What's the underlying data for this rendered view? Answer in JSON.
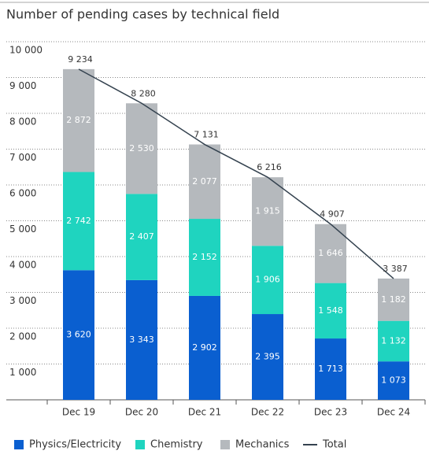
{
  "chart_data": {
    "type": "stacked-bar-line",
    "title": "Number of pending cases by technical field",
    "categories": [
      "Dec 19",
      "Dec 20",
      "Dec 21",
      "Dec 22",
      "Dec 23",
      "Dec 24"
    ],
    "series": [
      {
        "name": "Physics/Electricity",
        "color": "#0a5fd0",
        "kind": "bar",
        "values": [
          3620,
          3343,
          2902,
          2395,
          1713,
          1073
        ],
        "value_labels": [
          "3 620",
          "3 343",
          "2 902",
          "2 395",
          "1 713",
          "1 073"
        ]
      },
      {
        "name": "Chemistry",
        "color": "#1fd4bf",
        "kind": "bar",
        "values": [
          2742,
          2407,
          2152,
          1906,
          1548,
          1132
        ],
        "value_labels": [
          "2 742",
          "2 407",
          "2 152",
          "1 906",
          "1 548",
          "1 132"
        ]
      },
      {
        "name": "Mechanics",
        "color": "#b5b9bd",
        "kind": "bar",
        "values": [
          2872,
          2530,
          2077,
          1915,
          1646,
          1182
        ],
        "value_labels": [
          "2 872",
          "2 530",
          "2 077",
          "1 915",
          "1 646",
          "1 182"
        ]
      },
      {
        "name": "Total",
        "color": "#34424f",
        "kind": "line",
        "values": [
          9234,
          8280,
          7131,
          6216,
          4907,
          3387
        ],
        "value_labels": [
          "9 234",
          "8 280",
          "7 131",
          "6 216",
          "4 907",
          "3 387"
        ]
      }
    ],
    "ylim": [
      0,
      10000
    ],
    "yticks": [
      {
        "value": 1000,
        "label": "1 000"
      },
      {
        "value": 2000,
        "label": "2 000"
      },
      {
        "value": 3000,
        "label": "3 000"
      },
      {
        "value": 4000,
        "label": "4 000"
      },
      {
        "value": 5000,
        "label": "5 000"
      },
      {
        "value": 6000,
        "label": "6 000"
      },
      {
        "value": 7000,
        "label": "7 000"
      },
      {
        "value": 8000,
        "label": "8 000"
      },
      {
        "value": 9000,
        "label": "9 000"
      },
      {
        "value": 10000,
        "label": "10 000"
      }
    ],
    "grid": true
  }
}
